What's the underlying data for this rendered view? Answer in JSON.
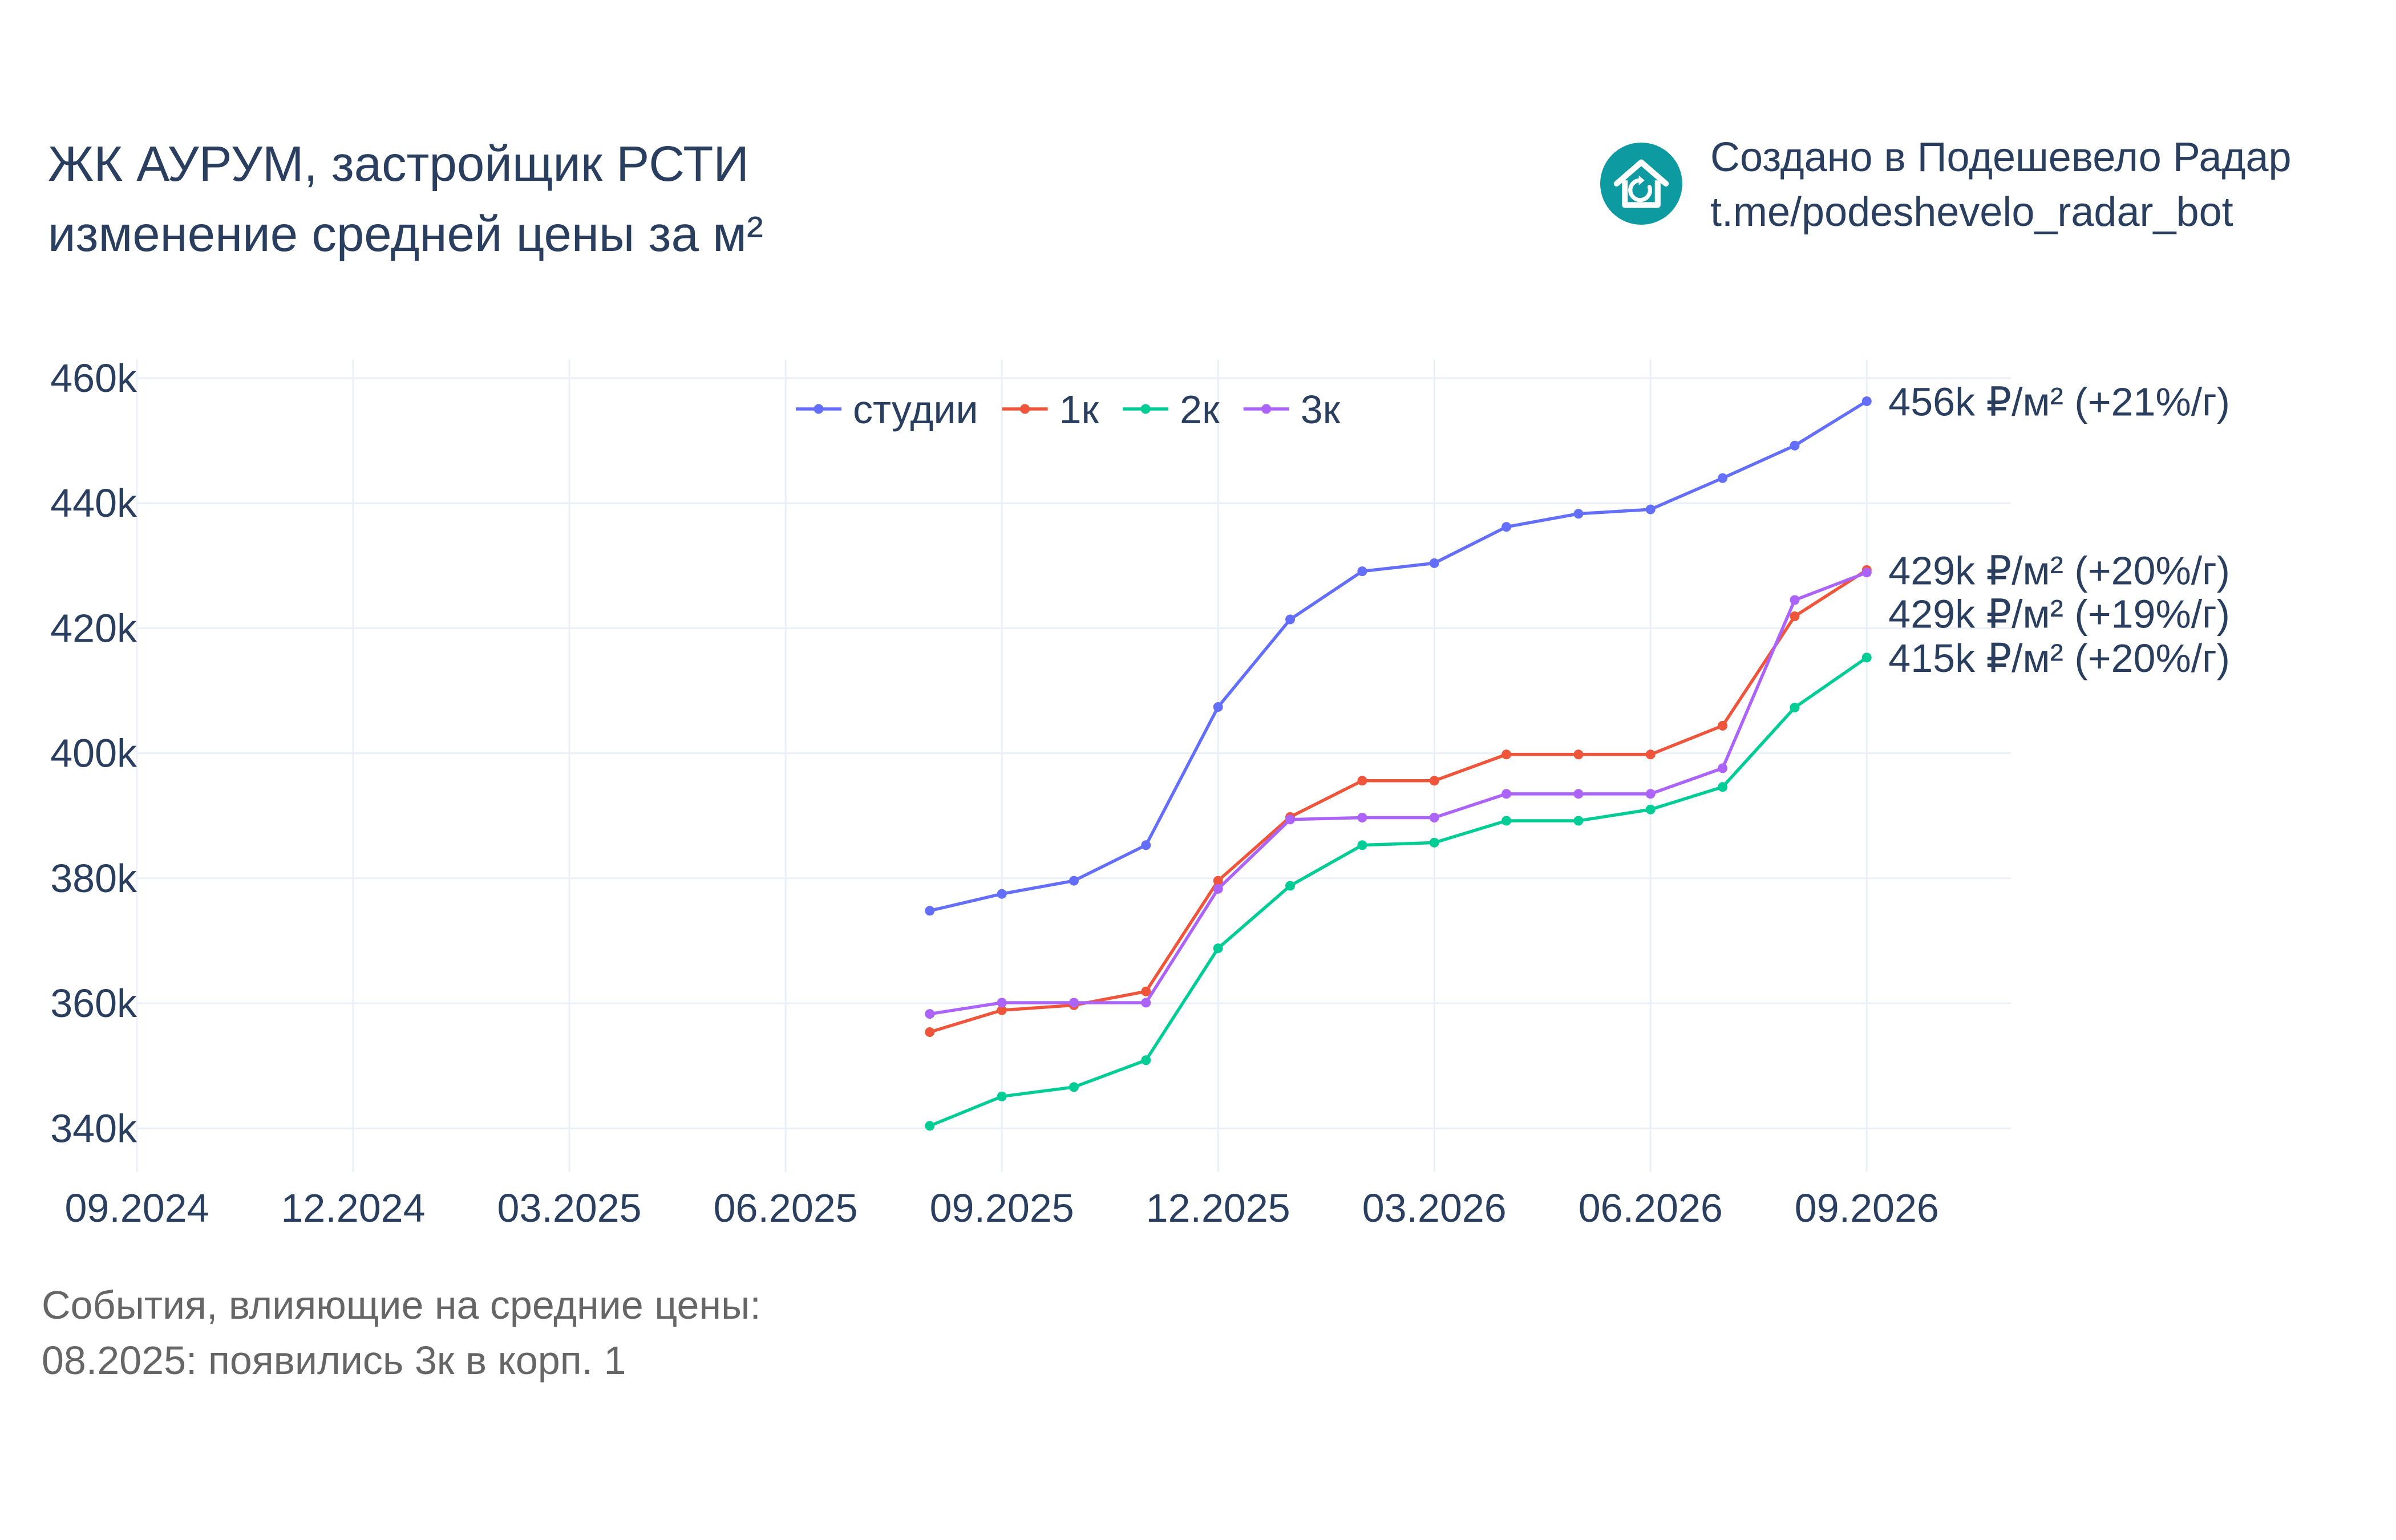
{
  "header": {
    "title_line1": "ЖК АУРУМ, застройщик РСТИ",
    "title_line2": "изменение средней цены за м²"
  },
  "brand": {
    "line1": "Создано в Подешевело Радар",
    "line2": "t.me/podeshevelo_radar_bot",
    "logo_icon": "house-refresh-icon",
    "logo_color": "#0d9aa0"
  },
  "events": {
    "heading": "События, влияющие на средние цены:",
    "items": [
      "08.2025: появились 3к в корп. 1"
    ]
  },
  "chart_data": {
    "type": "line",
    "x": [
      "08.2025",
      "09.2025",
      "10.2025",
      "11.2025",
      "12.2025",
      "01.2026",
      "02.2026",
      "03.2026",
      "04.2026",
      "05.2026",
      "06.2026",
      "07.2026",
      "08.2026",
      "09.2026"
    ],
    "x_ticks": [
      "09.2024",
      "12.2024",
      "03.2025",
      "06.2025",
      "09.2025",
      "12.2025",
      "03.2026",
      "06.2026",
      "09.2026"
    ],
    "xlim": [
      "09.2024",
      "11.2026"
    ],
    "y_ticks": [
      "340k",
      "360k",
      "380k",
      "400k",
      "420k",
      "440k",
      "460k"
    ],
    "ylim": [
      333,
      463
    ],
    "y_unit": "k",
    "grid": true,
    "legend_position": "top-center",
    "series": [
      {
        "name": "студии",
        "color": "#636efa",
        "values": [
          374.8,
          377.5,
          379.6,
          385.3,
          407.4,
          421.4,
          429.1,
          430.4,
          436.2,
          438.3,
          439.0,
          444.0,
          449.2,
          456.3
        ],
        "end_label": "456k ₽/м² (+21%/г)"
      },
      {
        "name": "1к",
        "color": "#ef553b",
        "values": [
          355.4,
          358.9,
          359.7,
          361.9,
          379.6,
          389.8,
          395.6,
          395.6,
          399.8,
          399.8,
          399.8,
          404.4,
          421.9,
          429.3
        ],
        "end_label": "429k ₽/м² (+20%/г)"
      },
      {
        "name": "2к",
        "color": "#00cc96",
        "values": [
          340.4,
          345.1,
          346.6,
          350.9,
          368.8,
          378.8,
          385.3,
          385.7,
          389.2,
          389.2,
          391.0,
          394.6,
          407.3,
          415.3
        ],
        "end_label": "415k ₽/м² (+20%/г)"
      },
      {
        "name": "3к",
        "color": "#ab63fa",
        "values": [
          358.3,
          360.1,
          360.1,
          360.1,
          378.3,
          389.4,
          389.7,
          389.7,
          393.5,
          393.5,
          393.5,
          397.6,
          424.5,
          428.9
        ],
        "end_label": "429k ₽/м² (+19%/г)"
      }
    ]
  }
}
